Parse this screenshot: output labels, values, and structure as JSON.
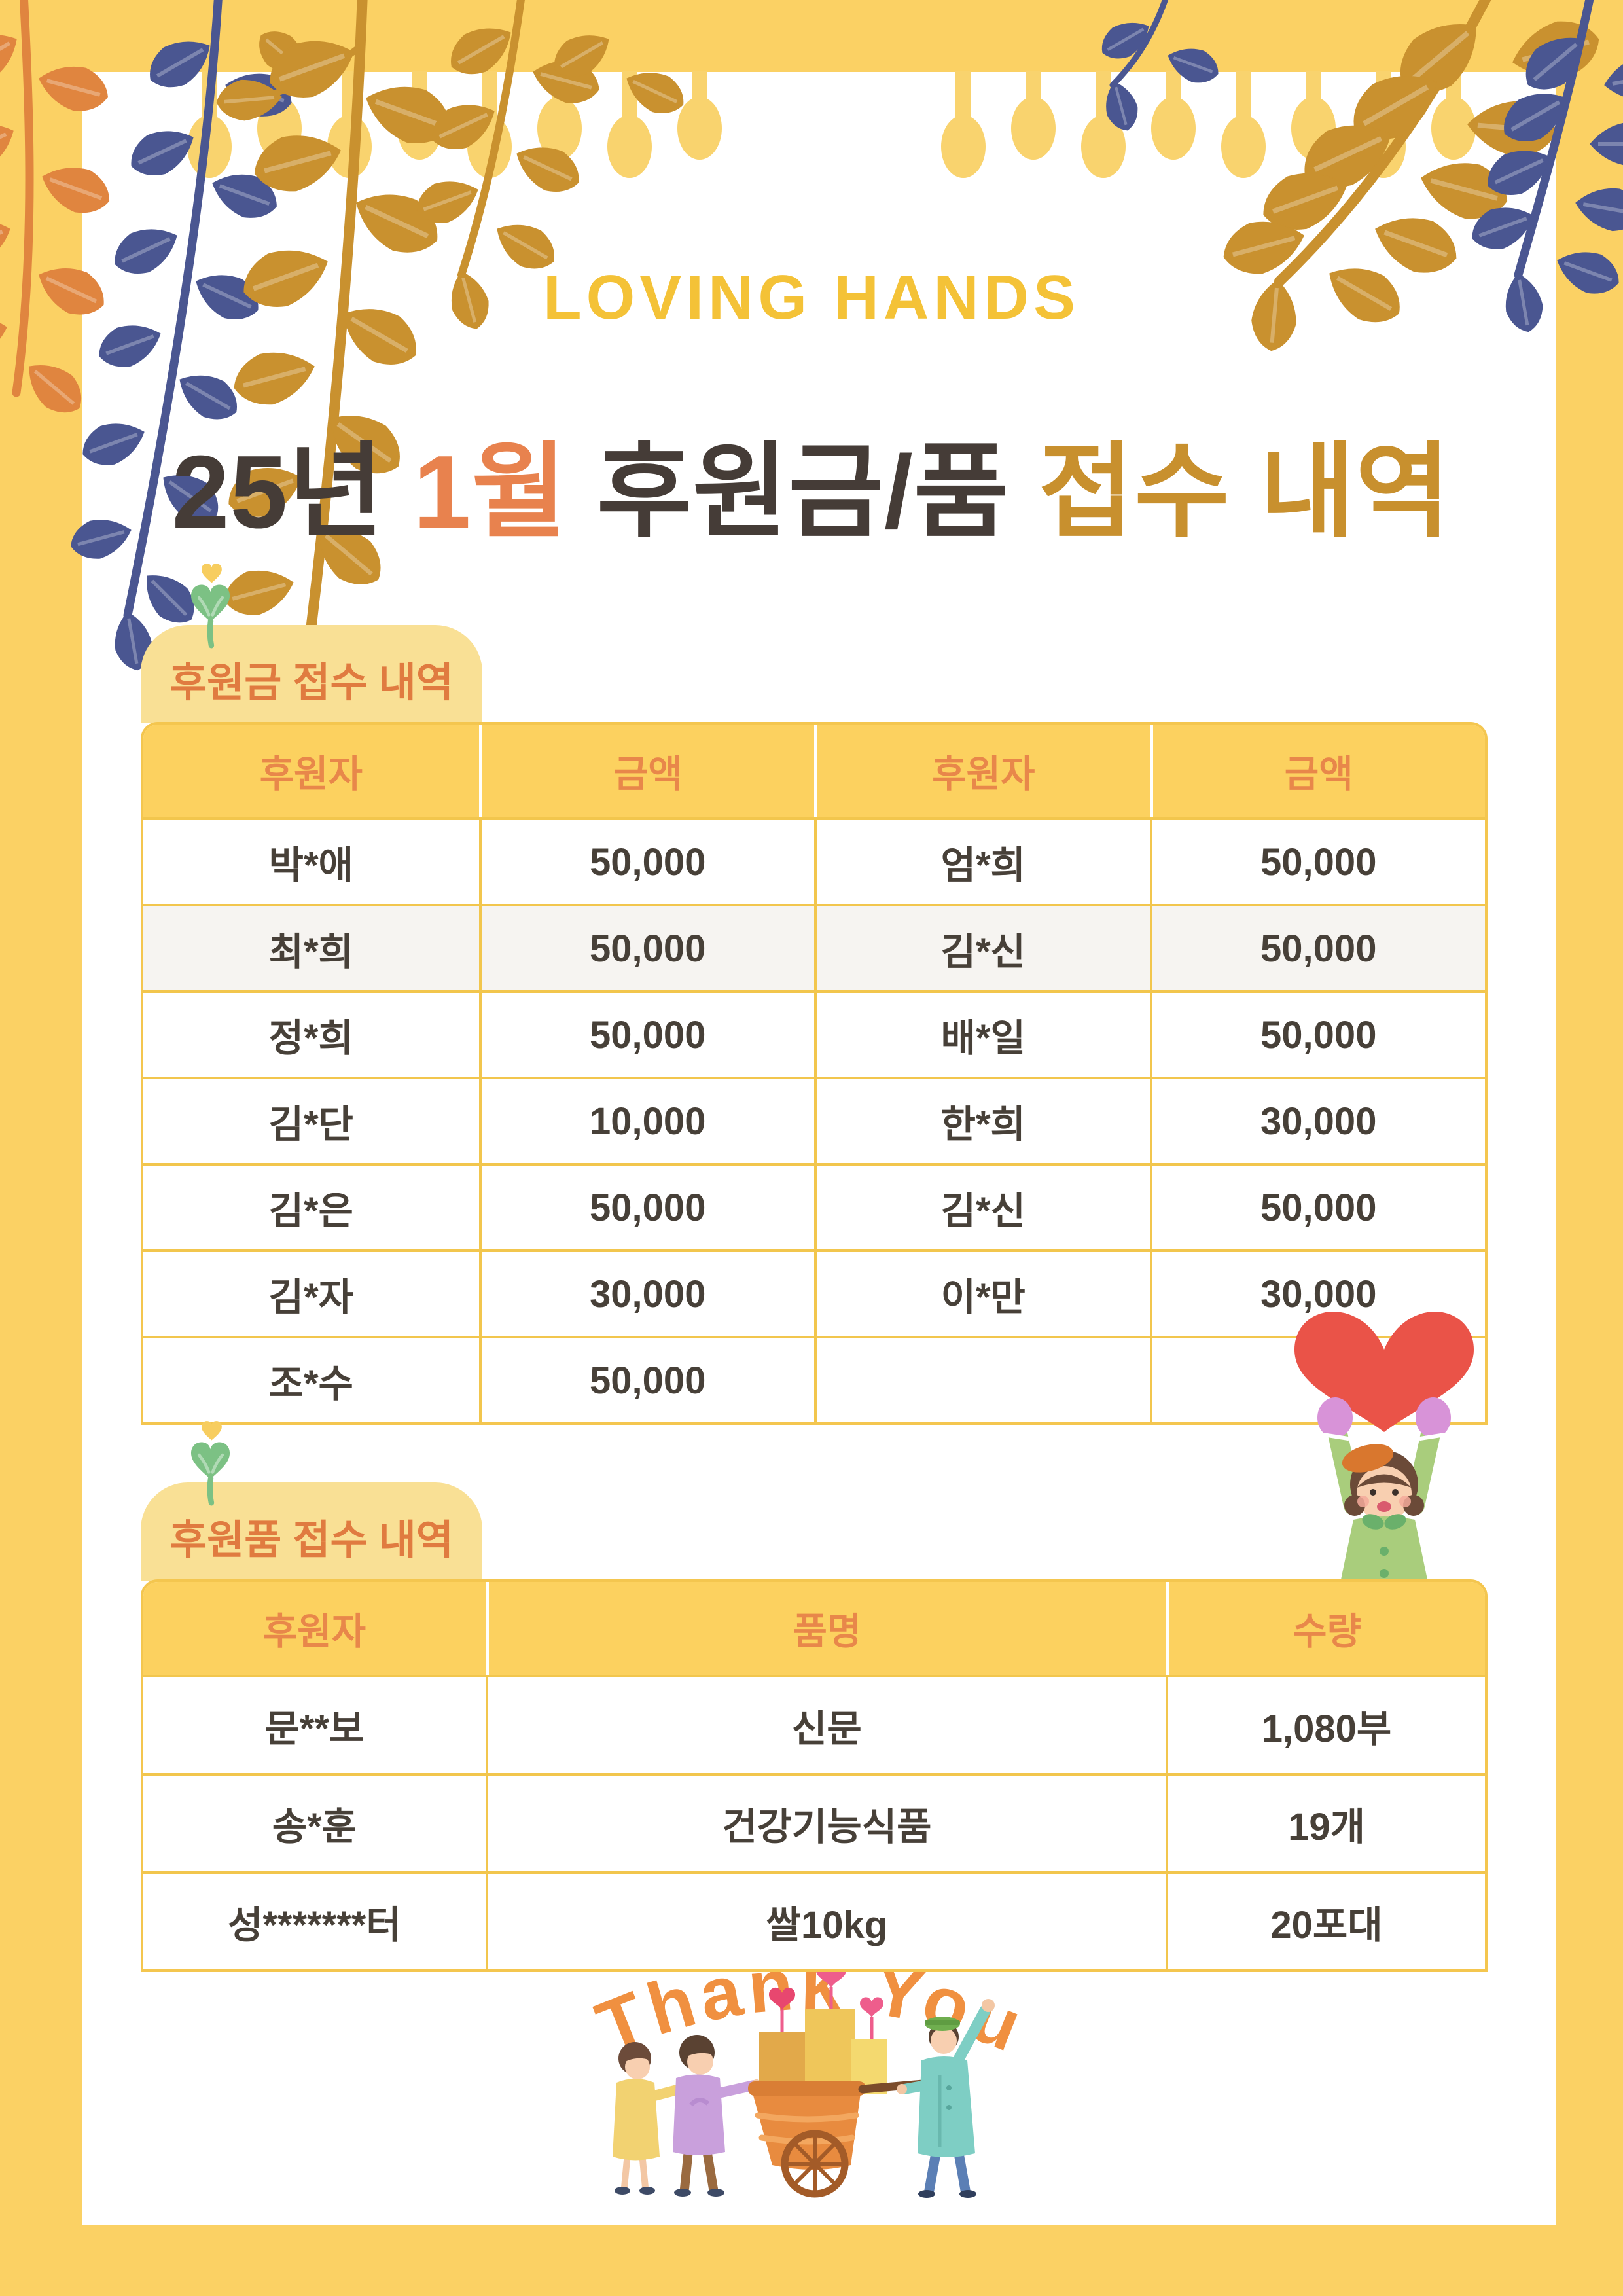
{
  "page": {
    "brand": "LOVING HANDS",
    "title": {
      "segments": [
        {
          "text": "25년 ",
          "color": "#453c37"
        },
        {
          "text": "1월",
          "color": "#e8824e"
        },
        {
          "text": " 후원금/품 ",
          "color": "#453c37"
        },
        {
          "text": "접수 내역",
          "color": "#c8902e"
        }
      ]
    }
  },
  "colors": {
    "page_yellow": "#fbd164",
    "garland_drop": "#f9d36e",
    "table_header_bg": "#fcd15f",
    "table_border": "#f2c64d",
    "header_text_orange": "#e8874a",
    "cell_text": "#474038",
    "tab_bg": "#f9e095",
    "section_title_orange": "#e07b40",
    "brand_yellow": "#f4c237",
    "sprout_green": "#7cc184",
    "heart_red": "#ea5348",
    "thank_you_orange": "#f09040",
    "leaf_gold": "#c9912f",
    "leaf_navy": "#4a5691",
    "leaf_orange": "#e0853f"
  },
  "donation_money": {
    "section_title": "후원금 접수 내역",
    "headers": [
      "후원자",
      "금액",
      "후원자",
      "금액"
    ],
    "rows": [
      {
        "cells": [
          "박*애",
          "50,000",
          "엄*희",
          "50,000"
        ]
      },
      {
        "cells": [
          "최*희",
          "50,000",
          "김*신",
          "50,000"
        ],
        "shaded": true
      },
      {
        "cells": [
          "정*희",
          "50,000",
          "배*일",
          "50,000"
        ]
      },
      {
        "cells": [
          "김*단",
          "10,000",
          "한*희",
          "30,000"
        ]
      },
      {
        "cells": [
          "김*은",
          "50,000",
          "김*신",
          "50,000"
        ]
      },
      {
        "cells": [
          "김*자",
          "30,000",
          "이*만",
          "30,000"
        ]
      },
      {
        "cells": [
          "조*수",
          "50,000",
          "",
          ""
        ]
      }
    ]
  },
  "donation_goods": {
    "section_title": "후원품 접수 내역",
    "headers": [
      "후원자",
      "품명",
      "수량"
    ],
    "rows": [
      {
        "cells": [
          "문**보",
          "신문",
          "1,080부"
        ]
      },
      {
        "cells": [
          "송*훈",
          "건강기능식품",
          "19개"
        ]
      },
      {
        "cells": [
          "성*******터",
          "쌀10kg",
          "20포대"
        ]
      }
    ]
  },
  "footer": {
    "thank_you": "Thank You"
  },
  "icons": {
    "sprout": "sprout-heart-icon",
    "garland": "hanging-drop-garland",
    "leaves": "autumn-leaf-branches",
    "heart_person": "girl-holding-heart-illustration",
    "cart": "people-pulling-gift-cart-illustration"
  }
}
